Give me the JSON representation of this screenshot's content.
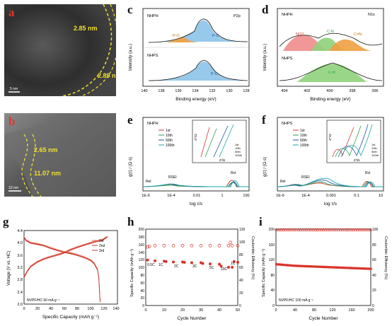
{
  "panels": {
    "a": {
      "label": "a",
      "measures": [
        "2.85 nm",
        "2.89 nm"
      ],
      "scalebar": "5 nm"
    },
    "b": {
      "label": "b",
      "measures": [
        "2.65 nm",
        "11.07 nm"
      ],
      "scalebar": "10 nm"
    },
    "c": {
      "label": "c",
      "xlabel": "Binding energy (eV)",
      "ylabel": "Intensity (a.u.)",
      "top_tag": "NHPH",
      "element": "P2p",
      "bottom_tag": "NHPS",
      "peaks_top": [
        "P-C",
        "P-O"
      ],
      "peaks_bottom": [
        "P-C"
      ],
      "xticks": [
        "140",
        "138",
        "136",
        "134",
        "132",
        "130",
        "128"
      ]
    },
    "d": {
      "label": "d",
      "xlabel": "Binding energy (eV)",
      "ylabel": "Intensity (a.u.)",
      "top_tag": "NHPH",
      "element": "N1s",
      "bottom_tag": "NHPS",
      "peaks_top": [
        "NO2",
        "C-N",
        "C=N"
      ],
      "peaks_bottom": [
        "C-N"
      ],
      "xticks": [
        "404",
        "402",
        "400",
        "398",
        "396"
      ]
    },
    "e": {
      "label": "e",
      "xlabel": "log τ/s",
      "ylabel": "g(τ) / (Ω·s)",
      "tag": "NHPH",
      "legend": [
        "1st",
        "10th",
        "50th",
        "100th"
      ],
      "regions": [
        "Rel",
        "RSEI",
        "Rct"
      ],
      "xticks": [
        "1E-6",
        "1E-4",
        "0.01",
        "1",
        "100"
      ],
      "inset": {
        "xlabel": "Z'/Ω",
        "ylabel": "-Z''/Ω",
        "legend": [
          "1st",
          "10th",
          "50th",
          "100th"
        ]
      }
    },
    "f": {
      "label": "f",
      "xlabel": "log τ/s",
      "ylabel": "g(τ) / (Ω·s)",
      "tag": "NHPS",
      "legend": [
        "1st",
        "10th",
        "50th",
        "100th"
      ],
      "regions": [
        "Rel",
        "RSEI",
        "Rct"
      ],
      "xticks": [
        "1E-6",
        "1E-4",
        "0.001",
        "0.1",
        "10"
      ],
      "inset": {
        "xlabel": "Z'/Ω",
        "ylabel": "-Z''/Ω",
        "legend": [
          "1st",
          "10th",
          "50th",
          "100th"
        ]
      }
    },
    "g": {
      "label": "g",
      "xlabel": "Specific Capacity (mAh g⁻¹)",
      "ylabel": "Voltage (V vs. HC)",
      "note": "NVPF/HC 50 mA g⁻¹",
      "legend": [
        "1st",
        "2nd",
        "3rd"
      ],
      "xticks": [
        "0",
        "20",
        "40",
        "60",
        "80",
        "100",
        "120",
        "140"
      ],
      "yticks": [
        "2.0",
        "2.4",
        "2.8",
        "3.2",
        "3.6",
        "4.0",
        "4.4"
      ]
    },
    "h": {
      "label": "h",
      "xlabel": "Cycle Number",
      "ylabel_left": "Specific Capacity (mAh g⁻¹)",
      "ylabel_right": "Coulombic Efficiency (%)",
      "rates": [
        "0.5C",
        "1C",
        "2C",
        "3C",
        "5C",
        "10C",
        "1C"
      ],
      "xticks": [
        "0",
        "10",
        "20",
        "30",
        "40",
        "50"
      ],
      "yticks_left": [
        "0",
        "20",
        "40",
        "60",
        "80",
        "100",
        "120",
        "140",
        "160",
        "180",
        "200"
      ],
      "yticks_right": [
        "0",
        "20",
        "40",
        "60",
        "80",
        "100",
        "120"
      ]
    },
    "i": {
      "label": "i",
      "xlabel": "Cycle Number",
      "ylabel_left": "Specific Capacity (mAh g⁻¹)",
      "ylabel_right": "Coulombic Efficiency (%)",
      "note": "NVPF/HC 100 mA g⁻¹",
      "xticks": [
        "0",
        "40",
        "80",
        "120",
        "160",
        "200"
      ],
      "yticks_left": [
        "0",
        "40",
        "80",
        "120",
        "160",
        "200"
      ],
      "yticks_right": [
        "0",
        "20",
        "40",
        "60",
        "80",
        "100"
      ]
    }
  },
  "colors": {
    "red": "#d9342b",
    "green": "#2e9e4f",
    "blue": "#1f57a8",
    "cyan": "#1aa6a6",
    "orange": "#f0a040",
    "ltblue": "#8cc3e8",
    "pink": "#f08c8c",
    "ltgreen": "#8fd17a",
    "salmon": "#e8735a",
    "yellow": "#f0e030"
  },
  "chart_data": [
    {
      "panel": "g",
      "type": "line",
      "x_label": "Specific Capacity (mAh g⁻¹)",
      "y_label": "Voltage (V vs. HC)",
      "xlim": [
        0,
        140
      ],
      "ylim": [
        2.0,
        4.4
      ],
      "series": [
        {
          "name": "charge",
          "x": [
            0,
            5,
            10,
            20,
            30,
            40,
            50,
            55,
            60,
            70,
            80,
            90,
            100,
            110,
            118,
            122,
            125
          ],
          "y": [
            2.9,
            3.1,
            3.25,
            3.4,
            3.5,
            3.57,
            3.63,
            3.66,
            3.7,
            3.8,
            3.88,
            3.95,
            4.02,
            4.08,
            4.12,
            4.18,
            4.22
          ]
        },
        {
          "name": "discharge",
          "x": [
            0,
            3,
            10,
            20,
            30,
            40,
            50,
            60,
            70,
            80,
            90,
            100,
            105,
            110,
            112,
            114
          ],
          "y": [
            4.2,
            4.1,
            4.02,
            3.98,
            3.93,
            3.85,
            3.78,
            3.72,
            3.68,
            3.62,
            3.55,
            3.45,
            3.35,
            3.15,
            2.9,
            2.1
          ]
        }
      ]
    },
    {
      "panel": "h",
      "type": "scatter",
      "x_label": "Cycle Number",
      "xlim": [
        0,
        50
      ],
      "ylim_left": [
        0,
        200
      ],
      "ylim_right": [
        0,
        120
      ],
      "series": [
        {
          "name": "capacity",
          "x": [
            1,
            5,
            10,
            11,
            15,
            20,
            21,
            25,
            30,
            31,
            35,
            40,
            41,
            45,
            47,
            48,
            50
          ],
          "y": [
            119,
            117,
            116,
            115,
            114,
            114,
            113,
            112,
            112,
            110,
            109,
            108,
            103,
            100,
            100,
            115,
            113
          ]
        },
        {
          "name": "coulombic_efficiency",
          "x": [
            1,
            2,
            5,
            10,
            15,
            20,
            25,
            30,
            35,
            40,
            45,
            46,
            47,
            50
          ],
          "y": [
            92,
            93,
            94,
            94,
            94,
            94,
            94,
            94,
            94,
            94,
            94,
            99,
            94,
            94
          ]
        }
      ]
    },
    {
      "panel": "i",
      "type": "scatter",
      "x_label": "Cycle Number",
      "xlim": [
        0,
        200
      ],
      "ylim_left": [
        0,
        200
      ],
      "ylim_right": [
        0,
        100
      ],
      "series": [
        {
          "name": "capacity",
          "x": [
            1,
            20,
            40,
            60,
            80,
            100,
            120,
            140,
            160,
            180,
            200
          ],
          "y": [
            108,
            106,
            104,
            103,
            102,
            101,
            100,
            99,
            98,
            97,
            96
          ]
        },
        {
          "name": "coulombic_efficiency",
          "x": [
            1,
            20,
            40,
            60,
            80,
            100,
            120,
            140,
            160,
            180,
            200
          ],
          "y": [
            99,
            99,
            99,
            99,
            99,
            99,
            99,
            99,
            99,
            99,
            99
          ]
        }
      ]
    }
  ]
}
